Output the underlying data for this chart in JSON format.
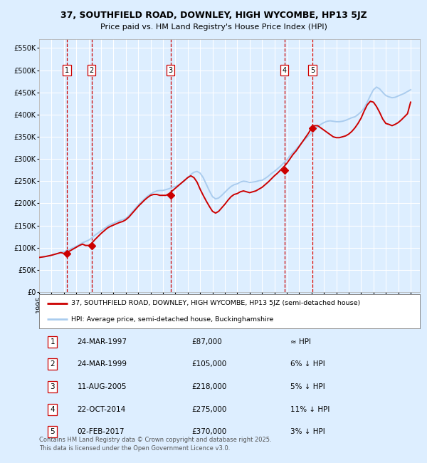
{
  "title_line1": "37, SOUTHFIELD ROAD, DOWNLEY, HIGH WYCOMBE, HP13 5JZ",
  "title_line2": "Price paid vs. HM Land Registry's House Price Index (HPI)",
  "background_color": "#ddeeff",
  "plot_bg_color": "#ddeeff",
  "grid_color": "#ffffff",
  "hpi_line_color": "#aaccee",
  "price_line_color": "#cc0000",
  "marker_color": "#cc0000",
  "vline_color": "#cc0000",
  "ylabel_values": [
    "£0",
    "£50K",
    "£100K",
    "£150K",
    "£200K",
    "£250K",
    "£300K",
    "£350K",
    "£400K",
    "£450K",
    "£500K",
    "£550K"
  ],
  "y_ticks": [
    0,
    50000,
    100000,
    150000,
    200000,
    250000,
    300000,
    350000,
    400000,
    450000,
    500000,
    550000
  ],
  "ylim": [
    0,
    570000
  ],
  "transactions": [
    {
      "num": 1,
      "date": "1997-03-24",
      "price": 87000
    },
    {
      "num": 2,
      "date": "1999-03-24",
      "price": 105000
    },
    {
      "num": 3,
      "date": "2005-08-11",
      "price": 218000
    },
    {
      "num": 4,
      "date": "2014-10-22",
      "price": 275000
    },
    {
      "num": 5,
      "date": "2017-02-02",
      "price": 370000
    }
  ],
  "table_rows": [
    {
      "num": 1,
      "date_str": "24-MAR-1997",
      "price_str": "£87,000",
      "rel": "≈ HPI"
    },
    {
      "num": 2,
      "date_str": "24-MAR-1999",
      "price_str": "£105,000",
      "rel": "6% ↓ HPI"
    },
    {
      "num": 3,
      "date_str": "11-AUG-2005",
      "price_str": "£218,000",
      "rel": "5% ↓ HPI"
    },
    {
      "num": 4,
      "date_str": "22-OCT-2014",
      "price_str": "£275,000",
      "rel": "11% ↓ HPI"
    },
    {
      "num": 5,
      "date_str": "02-FEB-2017",
      "price_str": "£370,000",
      "rel": "3% ↓ HPI"
    }
  ],
  "legend_price_label": "37, SOUTHFIELD ROAD, DOWNLEY, HIGH WYCOMBE, HP13 5JZ (semi-detached house)",
  "legend_hpi_label": "HPI: Average price, semi-detached house, Buckinghamshire",
  "footer_text": "Contains HM Land Registry data © Crown copyright and database right 2025.\nThis data is licensed under the Open Government Licence v3.0.",
  "hpi_data_x": [
    1995.0,
    1995.25,
    1995.5,
    1995.75,
    1996.0,
    1996.25,
    1996.5,
    1996.75,
    1997.0,
    1997.25,
    1997.5,
    1997.75,
    1998.0,
    1998.25,
    1998.5,
    1998.75,
    1999.0,
    1999.25,
    1999.5,
    1999.75,
    2000.0,
    2000.25,
    2000.5,
    2000.75,
    2001.0,
    2001.25,
    2001.5,
    2001.75,
    2002.0,
    2002.25,
    2002.5,
    2002.75,
    2003.0,
    2003.25,
    2003.5,
    2003.75,
    2004.0,
    2004.25,
    2004.5,
    2004.75,
    2005.0,
    2005.25,
    2005.5,
    2005.75,
    2006.0,
    2006.25,
    2006.5,
    2006.75,
    2007.0,
    2007.25,
    2007.5,
    2007.75,
    2008.0,
    2008.25,
    2008.5,
    2008.75,
    2009.0,
    2009.25,
    2009.5,
    2009.75,
    2010.0,
    2010.25,
    2010.5,
    2010.75,
    2011.0,
    2011.25,
    2011.5,
    2011.75,
    2012.0,
    2012.25,
    2012.5,
    2012.75,
    2013.0,
    2013.25,
    2013.5,
    2013.75,
    2014.0,
    2014.25,
    2014.5,
    2014.75,
    2015.0,
    2015.25,
    2015.5,
    2015.75,
    2016.0,
    2016.25,
    2016.5,
    2016.75,
    2017.0,
    2017.25,
    2017.5,
    2017.75,
    2018.0,
    2018.25,
    2018.5,
    2018.75,
    2019.0,
    2019.25,
    2019.5,
    2019.75,
    2020.0,
    2020.25,
    2020.5,
    2020.75,
    2021.0,
    2021.25,
    2021.5,
    2021.75,
    2022.0,
    2022.25,
    2022.5,
    2022.75,
    2023.0,
    2023.25,
    2023.5,
    2023.75,
    2024.0,
    2024.25,
    2024.5,
    2024.75,
    2025.0
  ],
  "hpi_data_y": [
    78000,
    79000,
    80000,
    81500,
    83000,
    85000,
    87000,
    89000,
    91000,
    94000,
    97000,
    100000,
    103000,
    107000,
    111000,
    114000,
    117000,
    122000,
    128000,
    133000,
    138000,
    143000,
    148000,
    152000,
    155000,
    158000,
    161000,
    163000,
    166000,
    172000,
    180000,
    188000,
    196000,
    203000,
    210000,
    216000,
    221000,
    225000,
    228000,
    229000,
    229000,
    231000,
    233000,
    236000,
    238000,
    241000,
    246000,
    251000,
    258000,
    265000,
    270000,
    272000,
    268000,
    258000,
    243000,
    228000,
    215000,
    210000,
    212000,
    218000,
    225000,
    232000,
    238000,
    242000,
    244000,
    248000,
    250000,
    249000,
    247000,
    248000,
    249000,
    251000,
    252000,
    256000,
    261000,
    267000,
    272000,
    278000,
    284000,
    291000,
    298000,
    307000,
    315000,
    322000,
    330000,
    338000,
    345000,
    352000,
    358000,
    366000,
    373000,
    378000,
    382000,
    385000,
    386000,
    385000,
    384000,
    384000,
    385000,
    387000,
    390000,
    393000,
    395000,
    400000,
    406000,
    415000,
    428000,
    443000,
    456000,
    462000,
    458000,
    450000,
    443000,
    440000,
    438000,
    439000,
    442000,
    445000,
    448000,
    452000,
    456000
  ],
  "price_data_x": [
    1995.0,
    1995.25,
    1995.5,
    1995.75,
    1996.0,
    1996.25,
    1996.5,
    1996.75,
    1997.0,
    1997.25,
    1997.5,
    1997.75,
    1998.0,
    1998.25,
    1998.5,
    1998.75,
    1999.0,
    1999.25,
    1999.5,
    1999.75,
    2000.0,
    2000.25,
    2000.5,
    2000.75,
    2001.0,
    2001.25,
    2001.5,
    2001.75,
    2002.0,
    2002.25,
    2002.5,
    2002.75,
    2003.0,
    2003.25,
    2003.5,
    2003.75,
    2004.0,
    2004.25,
    2004.5,
    2004.75,
    2005.0,
    2005.25,
    2005.5,
    2005.75,
    2006.0,
    2006.25,
    2006.5,
    2006.75,
    2007.0,
    2007.25,
    2007.5,
    2007.75,
    2008.0,
    2008.25,
    2008.5,
    2008.75,
    2009.0,
    2009.25,
    2009.5,
    2009.75,
    2010.0,
    2010.25,
    2010.5,
    2010.75,
    2011.0,
    2011.25,
    2011.5,
    2011.75,
    2012.0,
    2012.25,
    2012.5,
    2012.75,
    2013.0,
    2013.25,
    2013.5,
    2013.75,
    2014.0,
    2014.25,
    2014.5,
    2014.75,
    2015.0,
    2015.25,
    2015.5,
    2015.75,
    2016.0,
    2016.25,
    2016.5,
    2016.75,
    2017.0,
    2017.25,
    2017.5,
    2017.75,
    2018.0,
    2018.25,
    2018.5,
    2018.75,
    2019.0,
    2019.25,
    2019.5,
    2019.75,
    2020.0,
    2020.25,
    2020.5,
    2020.75,
    2021.0,
    2021.25,
    2021.5,
    2021.75,
    2022.0,
    2022.25,
    2022.5,
    2022.75,
    2023.0,
    2023.25,
    2023.5,
    2023.75,
    2024.0,
    2024.25,
    2024.5,
    2024.75,
    2025.0
  ],
  "price_data_y": [
    78000,
    79000,
    80000,
    81500,
    83000,
    85000,
    87000,
    89000,
    87000,
    90000,
    93000,
    97000,
    101000,
    105000,
    108000,
    105000,
    105000,
    110000,
    118000,
    125000,
    132000,
    138000,
    144000,
    148000,
    151000,
    154000,
    157000,
    159000,
    163000,
    169000,
    177000,
    185000,
    193000,
    200000,
    207000,
    213000,
    218000,
    220000,
    220000,
    218000,
    218000,
    218000,
    222000,
    228000,
    234000,
    240000,
    246000,
    252000,
    258000,
    262000,
    258000,
    248000,
    232000,
    218000,
    205000,
    193000,
    182000,
    178000,
    182000,
    190000,
    198000,
    207000,
    215000,
    220000,
    222000,
    226000,
    228000,
    226000,
    224000,
    226000,
    228000,
    232000,
    236000,
    242000,
    248000,
    255000,
    262000,
    268000,
    275000,
    282000,
    290000,
    300000,
    310000,
    318000,
    328000,
    338000,
    348000,
    358000,
    370000,
    375000,
    375000,
    370000,
    365000,
    360000,
    355000,
    350000,
    348000,
    348000,
    350000,
    352000,
    356000,
    362000,
    370000,
    380000,
    392000,
    408000,
    422000,
    430000,
    428000,
    418000,
    405000,
    390000,
    380000,
    378000,
    375000,
    378000,
    382000,
    388000,
    395000,
    402000,
    428000
  ]
}
